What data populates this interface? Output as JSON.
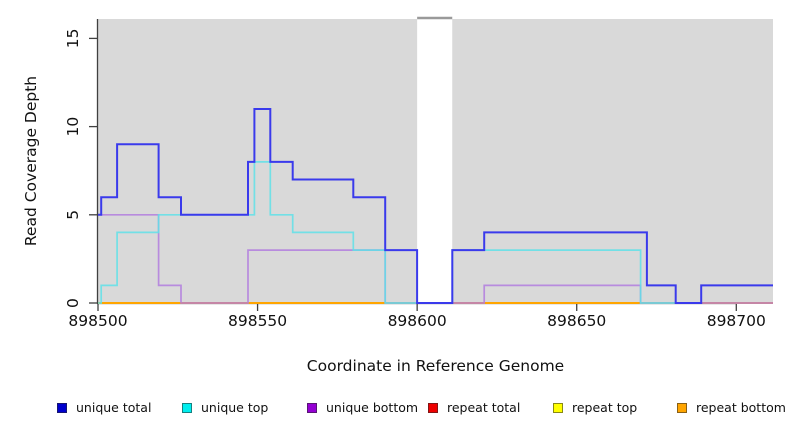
{
  "chart_data": {
    "type": "line",
    "step": true,
    "title": "",
    "xlabel": "Coordinate in Reference Genome",
    "ylabel": "Read Coverage Depth",
    "xlim": [
      898500,
      898711.5
    ],
    "ylim": [
      0,
      16.1
    ],
    "grid": false,
    "panel_background": "#d9d9d9",
    "outer_background": "#ffffff",
    "x_ticks": [
      {
        "value": 898500,
        "label": "898500"
      },
      {
        "value": 898550,
        "label": "898550"
      },
      {
        "value": 898600,
        "label": "898600"
      },
      {
        "value": 898650,
        "label": "898650"
      },
      {
        "value": 898700,
        "label": "898700"
      }
    ],
    "y_ticks": [
      {
        "value": 0,
        "label": "0"
      },
      {
        "value": 5,
        "label": "5"
      },
      {
        "value": 10,
        "label": "10"
      },
      {
        "value": 15,
        "label": "15"
      }
    ],
    "masked_region": {
      "x_start": 898600,
      "x_end": 898611,
      "fill": "#ffffff",
      "cap_color": "#9a9a9a"
    },
    "series": [
      {
        "name": "repeat bottom",
        "color": "#FFA500",
        "width": 2,
        "opacity": 1,
        "points": [
          [
            898500,
            0
          ],
          [
            898711.5,
            0
          ]
        ]
      },
      {
        "name": "unique bottom",
        "color": "#B27CDE",
        "width": 1.7,
        "opacity": 0.85,
        "points": [
          [
            898500,
            5
          ],
          [
            898519,
            1
          ],
          [
            898526,
            0
          ],
          [
            898547,
            3
          ],
          [
            898590,
            0
          ],
          [
            898621,
            1
          ],
          [
            898670,
            0
          ],
          [
            898711.5,
            0
          ]
        ]
      },
      {
        "name": "unique top",
        "color": "#5FE0E8",
        "width": 1.7,
        "opacity": 0.85,
        "points": [
          [
            898500,
            0
          ],
          [
            898501,
            1
          ],
          [
            898506,
            4
          ],
          [
            898519,
            5
          ],
          [
            898549,
            8
          ],
          [
            898554,
            5
          ],
          [
            898561,
            4
          ],
          [
            898580,
            3
          ],
          [
            898590,
            0
          ],
          [
            898611,
            3
          ],
          [
            898670,
            0
          ],
          [
            898689,
            0
          ]
        ]
      },
      {
        "name": "unique total",
        "color": "#3A3AEC",
        "width": 2,
        "opacity": 1,
        "points": [
          [
            898500,
            5
          ],
          [
            898501,
            6
          ],
          [
            898506,
            9
          ],
          [
            898519,
            6
          ],
          [
            898526,
            5
          ],
          [
            898547,
            8
          ],
          [
            898549,
            11
          ],
          [
            898554,
            8
          ],
          [
            898561,
            7
          ],
          [
            898580,
            6
          ],
          [
            898590,
            3
          ],
          [
            898600,
            0
          ],
          [
            898611,
            3
          ],
          [
            898621,
            4
          ],
          [
            898672,
            1
          ],
          [
            898681,
            0
          ],
          [
            898689,
            1
          ],
          [
            898711.5,
            1
          ]
        ]
      }
    ],
    "legend": [
      {
        "label": "unique total",
        "color": "#0000CD"
      },
      {
        "label": "unique top",
        "color": "#00EEEE"
      },
      {
        "label": "unique bottom",
        "color": "#9400D3"
      },
      {
        "label": "repeat total",
        "color": "#EE0000"
      },
      {
        "label": "repeat top",
        "color": "#FFFF00"
      },
      {
        "label": "repeat bottom",
        "color": "#FFA500"
      }
    ],
    "legend_position": "bottom"
  }
}
